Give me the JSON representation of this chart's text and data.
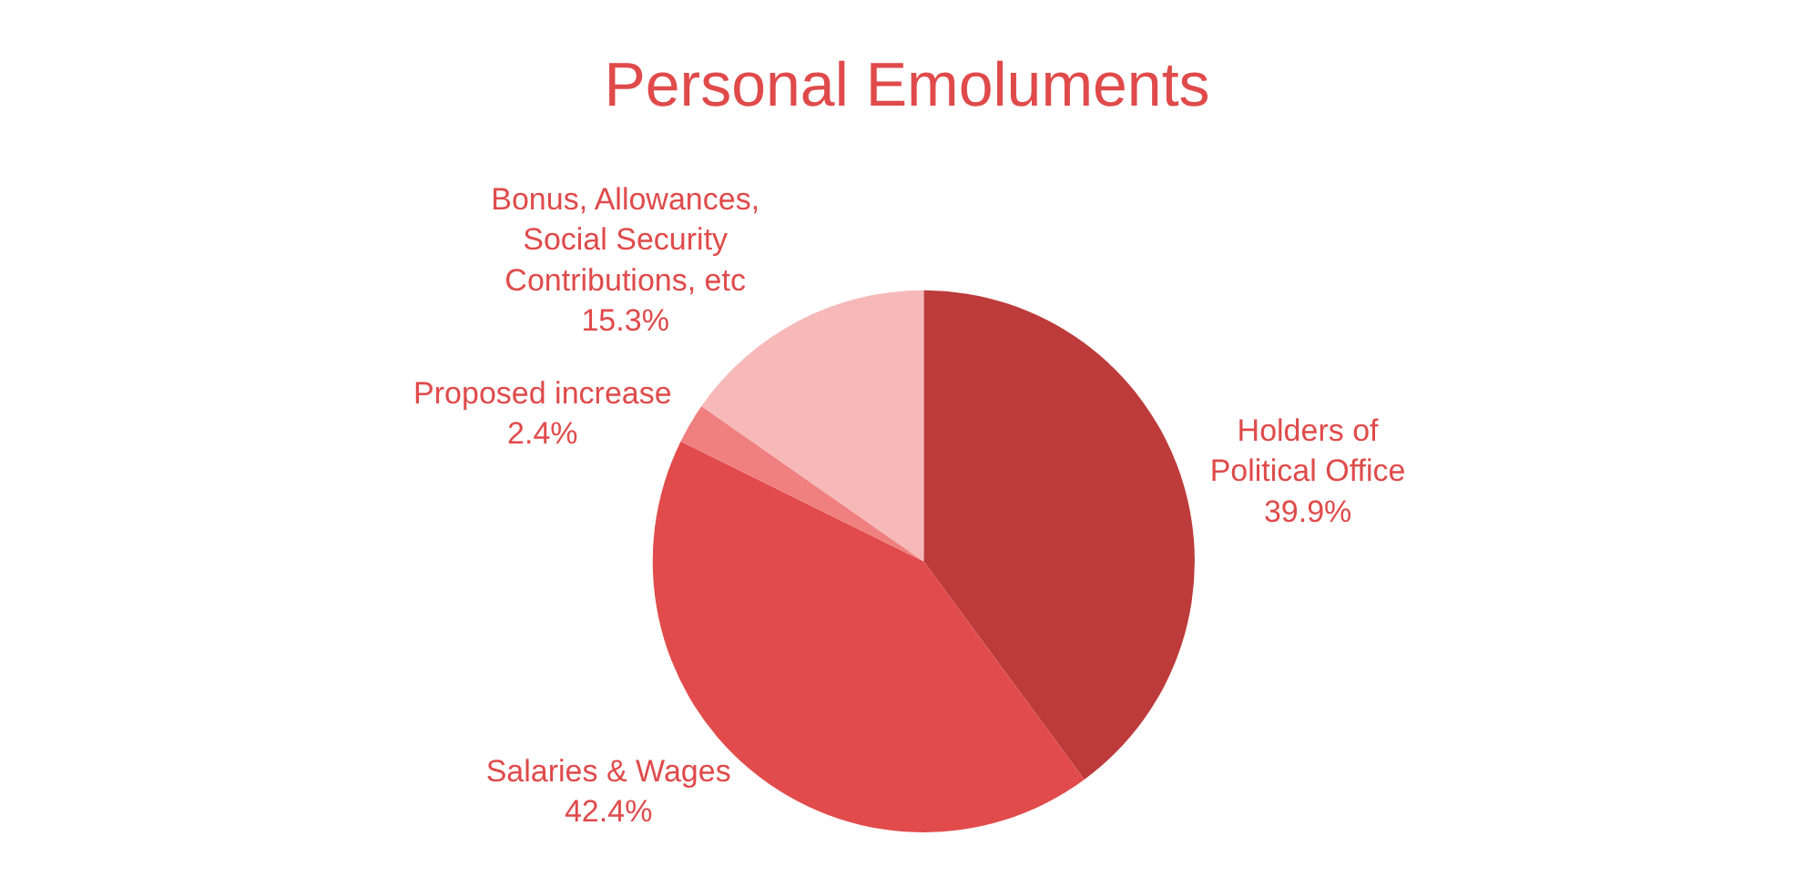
{
  "chart_data": {
    "type": "pie",
    "title": "Personal Emoluments",
    "categories": [
      "Holders of Political Office",
      "Salaries & Wages",
      "Proposed increase",
      "Bonus, Allowances, Social Security Contributions, etc"
    ],
    "values": [
      39.9,
      42.4,
      2.4,
      15.3
    ],
    "value_labels": [
      "39.9%",
      "42.4%",
      "2.4%",
      "15.3%"
    ],
    "colors": [
      "#be3b3b",
      "#e24b4b",
      "#f07f7f",
      "#f7b8b8"
    ],
    "legend": false
  }
}
